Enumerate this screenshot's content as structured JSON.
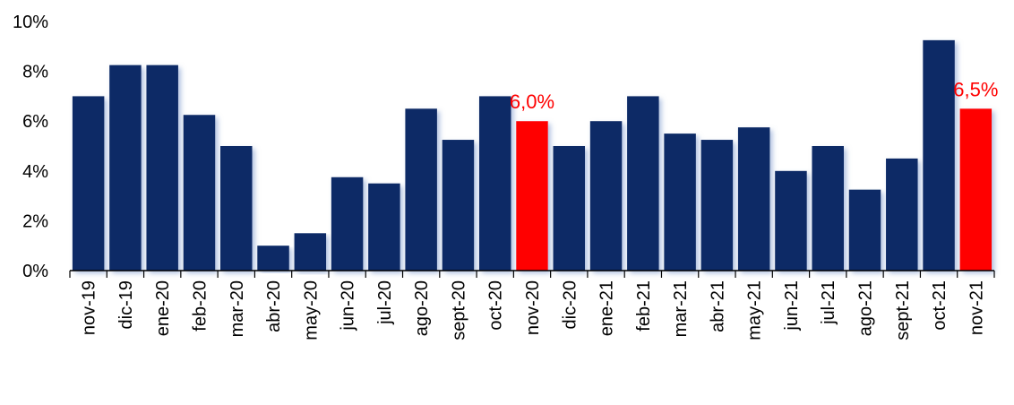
{
  "chart_data": {
    "type": "bar",
    "categories": [
      "nov-19",
      "dic-19",
      "ene-20",
      "feb-20",
      "mar-20",
      "abr-20",
      "may-20",
      "jun-20",
      "jul-20",
      "ago-20",
      "sept-20",
      "oct-20",
      "nov-20",
      "dic-20",
      "ene-21",
      "feb-21",
      "mar-21",
      "abr-21",
      "may-21",
      "jun-21",
      "jul-21",
      "ago-21",
      "sept-21",
      "oct-21",
      "nov-21"
    ],
    "values": [
      7.0,
      8.25,
      8.25,
      6.25,
      5.0,
      1.0,
      1.5,
      3.75,
      3.5,
      6.5,
      5.25,
      7.0,
      6.0,
      5.0,
      6.0,
      7.0,
      5.5,
      5.25,
      5.75,
      4.0,
      5.0,
      3.25,
      4.5,
      9.25,
      6.5
    ],
    "highlighted": [
      12,
      24
    ],
    "y_ticks": [
      "0%",
      "2%",
      "4%",
      "6%",
      "8%",
      "10%"
    ],
    "ylim": [
      0,
      10
    ],
    "grid": false,
    "data_labels": [
      {
        "category": "nov-20",
        "text": "6,0%"
      },
      {
        "category": "nov-21",
        "text": "6,5%"
      }
    ],
    "colors": {
      "bar": "#0a2a66",
      "highlight": "#ff0000",
      "label": "#ff0000",
      "axis": "#000000"
    }
  }
}
